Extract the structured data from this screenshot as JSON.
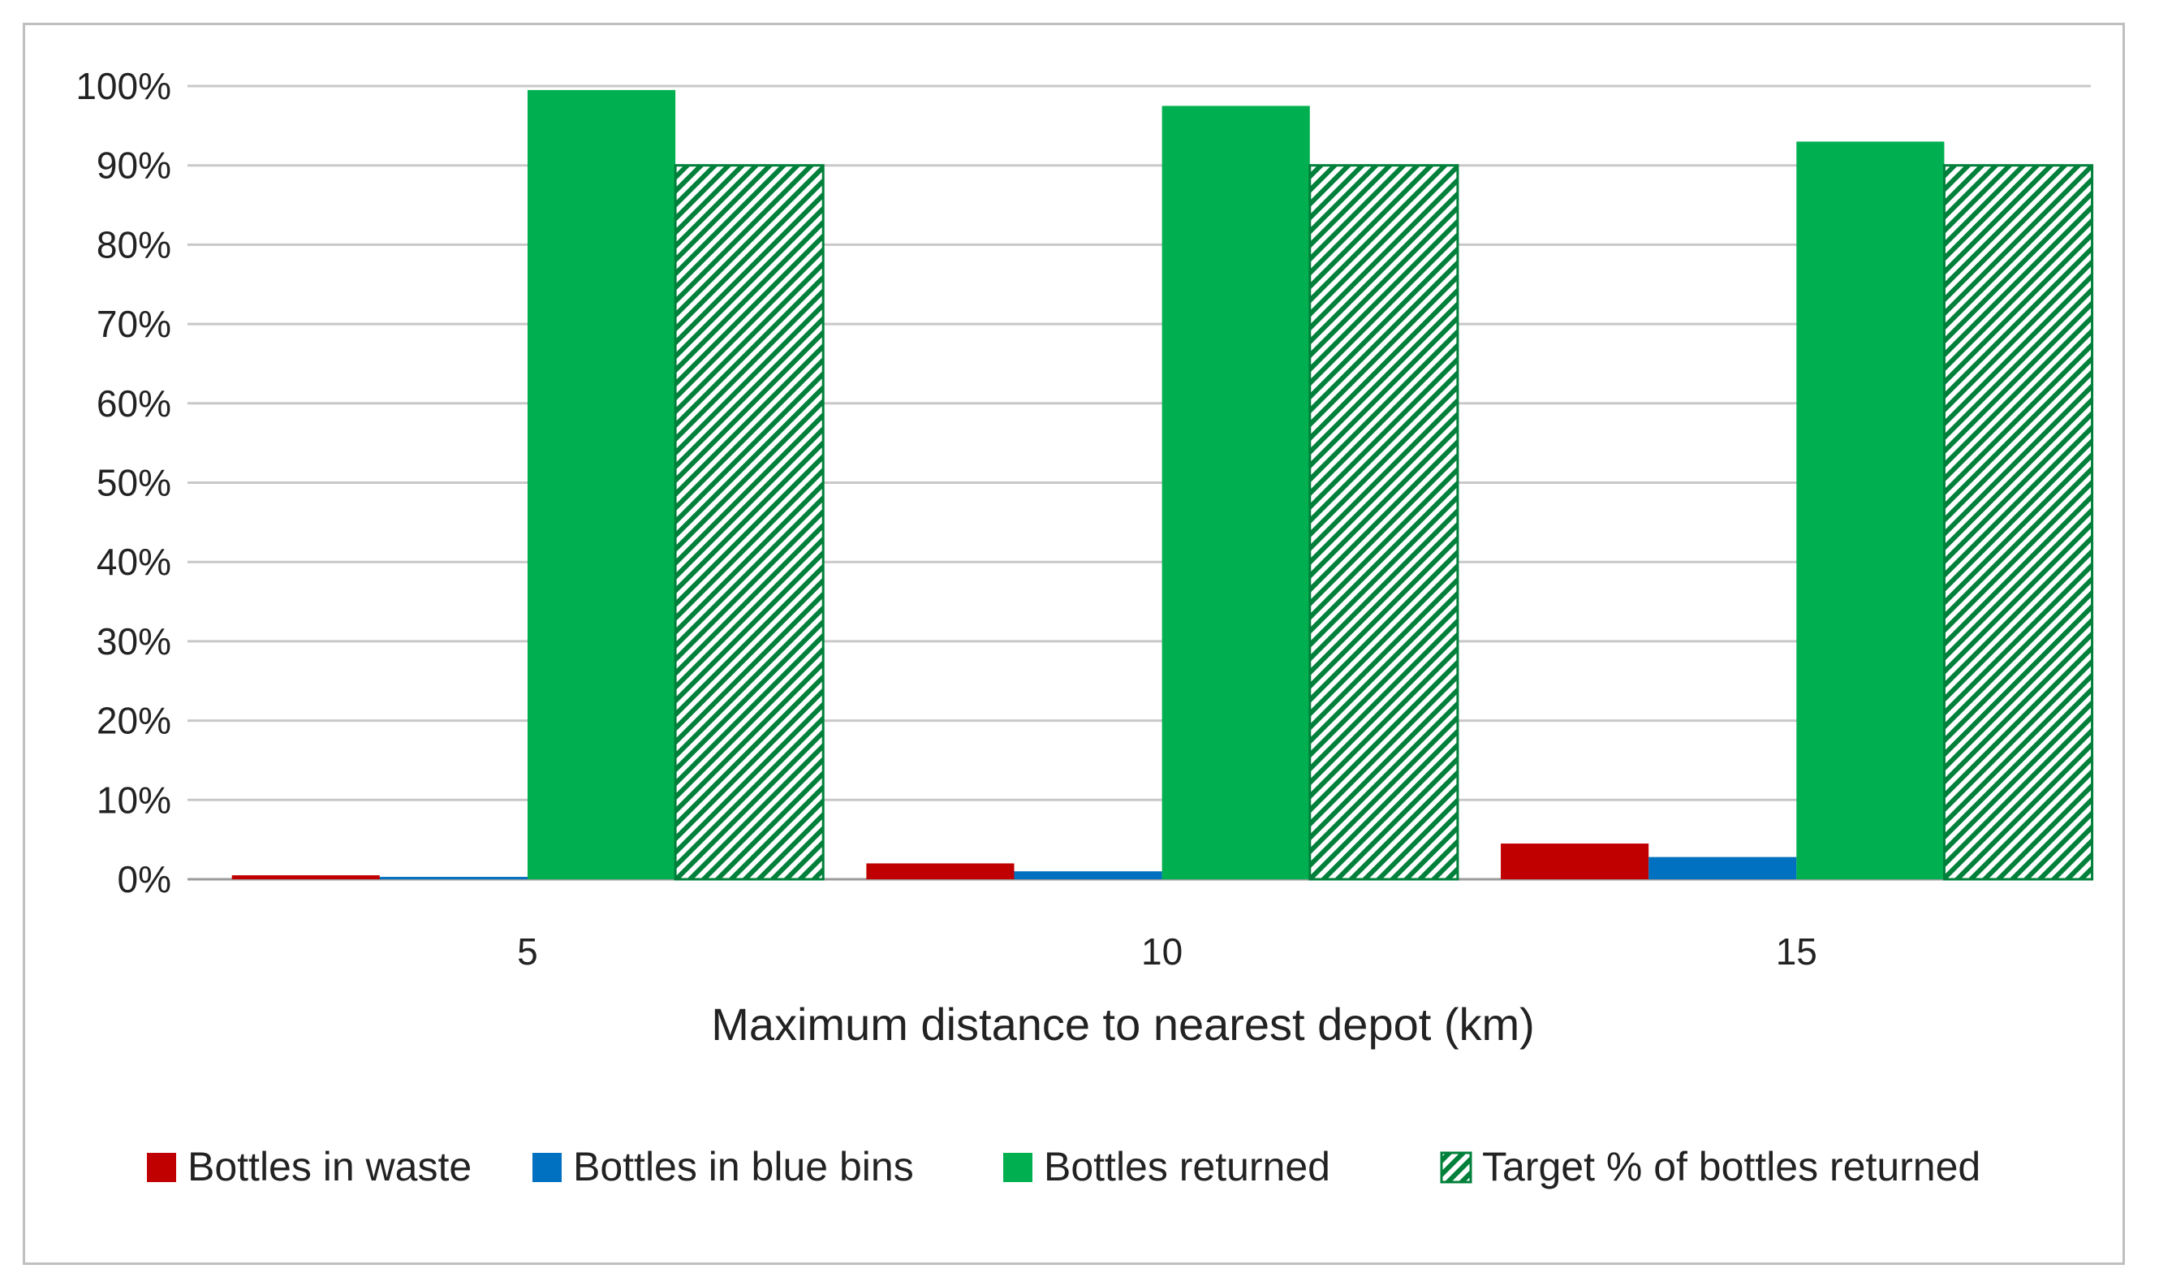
{
  "chart_data": {
    "type": "bar",
    "title": "",
    "xlabel": "Maximum distance to nearest depot (km)",
    "ylabel": "",
    "categories": [
      "5",
      "10",
      "15"
    ],
    "ylim": [
      0,
      100
    ],
    "yticks": [
      0,
      10,
      20,
      30,
      40,
      50,
      60,
      70,
      80,
      90,
      100
    ],
    "ytick_labels": [
      "0%",
      "10%",
      "20%",
      "30%",
      "40%",
      "50%",
      "60%",
      "70%",
      "80%",
      "90%",
      "100%"
    ],
    "grid": true,
    "legend_position": "bottom",
    "series": [
      {
        "name": "Bottles in waste",
        "values": [
          0.5,
          2,
          4.5
        ],
        "color": "#c00000",
        "pattern": "solid"
      },
      {
        "name": "Bottles in blue bins",
        "values": [
          0.3,
          1,
          2.8
        ],
        "color": "#0070c0",
        "pattern": "solid"
      },
      {
        "name": "Bottles returned",
        "values": [
          99.5,
          97.5,
          93
        ],
        "color": "#00b050",
        "pattern": "solid"
      },
      {
        "name": "Target % of bottles returned",
        "values": [
          90,
          90,
          90
        ],
        "color": "#00b050",
        "pattern": "diagonal-hatch"
      }
    ]
  }
}
